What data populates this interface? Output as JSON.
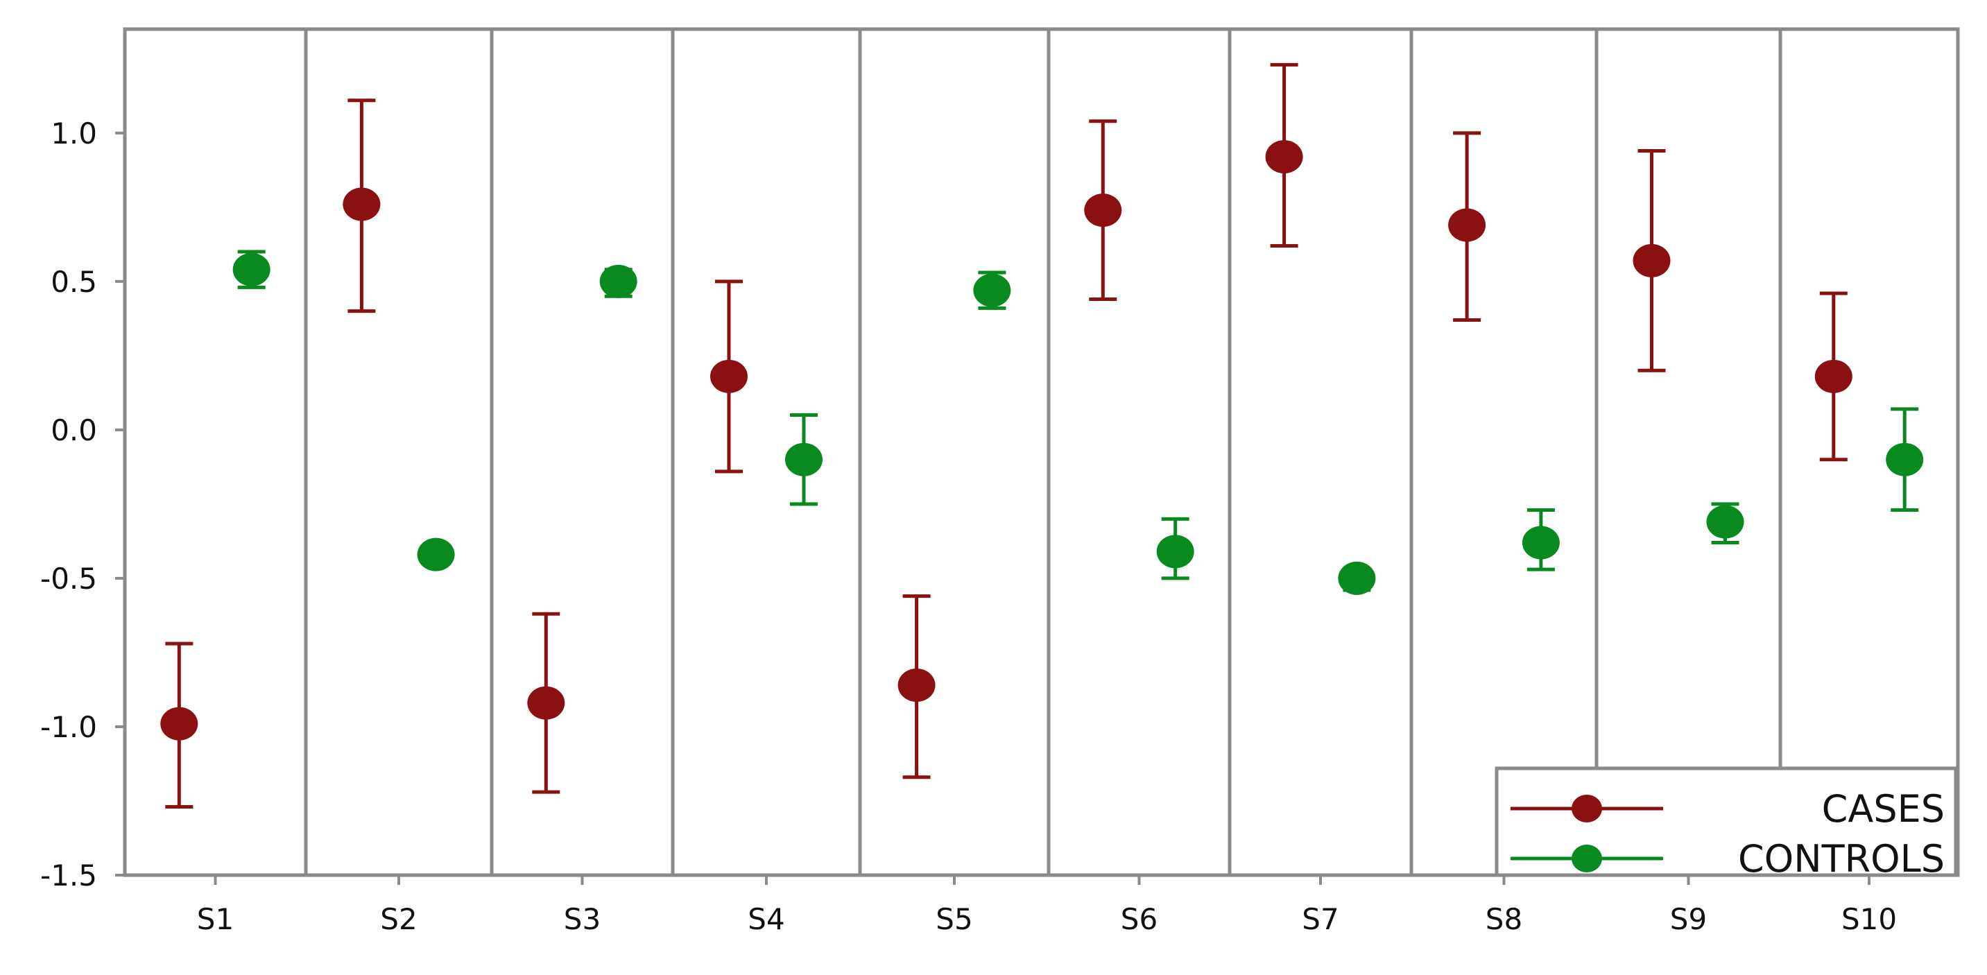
{
  "chart_data": {
    "type": "scatter",
    "subtype": "dot-and-whisker, paneled by category",
    "categories": [
      "S1",
      "S2",
      "S3",
      "S4",
      "S5",
      "S6",
      "S7",
      "S8",
      "S9",
      "S10"
    ],
    "ylim": [
      -1.5,
      1.35
    ],
    "yticks": [
      "1.0",
      "0.5",
      "0.0",
      "-0.5",
      "-1.0",
      "-1.5"
    ],
    "ytick_values": [
      1.0,
      0.5,
      0.0,
      -0.5,
      -1.0,
      -1.5
    ],
    "grid": false,
    "legend_position": "bottom-right",
    "series": [
      {
        "name": "CASES",
        "color": "#8b1010",
        "values": [
          -0.99,
          0.76,
          -0.92,
          0.18,
          -0.86,
          0.74,
          0.92,
          0.69,
          0.57,
          0.18
        ],
        "lower": [
          -1.27,
          0.4,
          -1.22,
          -0.14,
          -1.17,
          0.44,
          0.62,
          0.37,
          0.2,
          -0.1
        ],
        "upper": [
          -0.72,
          1.11,
          -0.62,
          0.5,
          -0.56,
          1.04,
          1.23,
          1.0,
          0.94,
          0.46
        ]
      },
      {
        "name": "CONTROLS",
        "color": "#088a1e",
        "values": [
          0.54,
          -0.42,
          0.5,
          -0.1,
          0.47,
          -0.41,
          -0.5,
          -0.38,
          -0.31,
          -0.1
        ],
        "lower": [
          0.48,
          -0.44,
          0.45,
          -0.25,
          0.41,
          -0.5,
          -0.54,
          -0.47,
          -0.38,
          -0.27
        ],
        "upper": [
          0.6,
          -0.4,
          0.54,
          0.05,
          0.53,
          -0.3,
          -0.47,
          -0.27,
          -0.25,
          0.07
        ]
      }
    ]
  }
}
